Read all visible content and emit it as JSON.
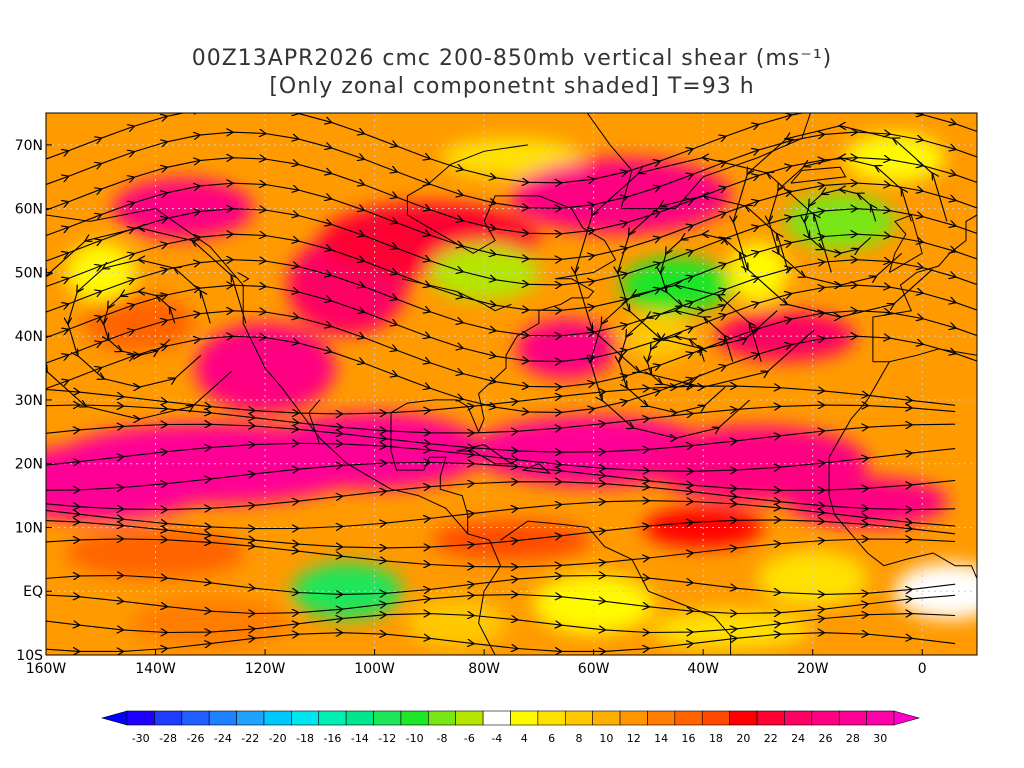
{
  "title": {
    "line1": "00Z13APR2026 cmc 200-850mb vertical shear (ms⁻¹)",
    "line2": "[Only zonal componetnt shaded] T=93 h"
  },
  "map": {
    "lon_range": [
      -160,
      10
    ],
    "lat_range": [
      -10,
      75
    ],
    "lon_ticks": [
      {
        "v": -160,
        "label": "160W"
      },
      {
        "v": -140,
        "label": "140W"
      },
      {
        "v": -120,
        "label": "120W"
      },
      {
        "v": -100,
        "label": "100W"
      },
      {
        "v": -80,
        "label": "80W"
      },
      {
        "v": -60,
        "label": "60W"
      },
      {
        "v": -40,
        "label": "40W"
      },
      {
        "v": -20,
        "label": "20W"
      },
      {
        "v": 0,
        "label": "0"
      }
    ],
    "lat_ticks": [
      {
        "v": 70,
        "label": "70N"
      },
      {
        "v": 60,
        "label": "60N"
      },
      {
        "v": 50,
        "label": "50N"
      },
      {
        "v": 40,
        "label": "40N"
      },
      {
        "v": 30,
        "label": "30N"
      },
      {
        "v": 20,
        "label": "20N"
      },
      {
        "v": 10,
        "label": "10N"
      },
      {
        "v": 0,
        "label": "EQ"
      },
      {
        "v": -10,
        "label": "10S"
      }
    ],
    "grid": true
  },
  "colorbar": {
    "values": [
      -30,
      -28,
      -26,
      -24,
      -22,
      -20,
      -18,
      -16,
      -14,
      -12,
      -10,
      -8,
      -6,
      -4,
      4,
      6,
      8,
      10,
      12,
      14,
      16,
      18,
      20,
      22,
      24,
      26,
      28,
      30
    ],
    "labels": [
      "-30",
      "-28",
      "-26",
      "-24",
      "-22",
      "-20",
      "-18",
      "-16",
      "-14",
      "-12",
      "-10",
      "-8",
      "-6",
      "-4",
      "4",
      "6",
      "8",
      "10",
      "12",
      "14",
      "16",
      "18",
      "20",
      "22",
      "24",
      "26",
      "28",
      "30"
    ],
    "colors": [
      "#1e00ff",
      "#1e3cff",
      "#1f5fff",
      "#1e82ff",
      "#1fa3ff",
      "#00c8ff",
      "#00e6f0",
      "#00f0b4",
      "#00e68c",
      "#1ee65a",
      "#1ee628",
      "#78e614",
      "#b4e600",
      "#ffffff",
      "#fffa00",
      "#ffe100",
      "#ffc800",
      "#ffaf00",
      "#ff9600",
      "#ff7d00",
      "#ff6400",
      "#ff4b00",
      "#ff0000",
      "#ff0032",
      "#ff0064",
      "#ff0082",
      "#ff0096",
      "#ff00aa"
    ]
  },
  "chart_data": {
    "type": "heatmap",
    "title": "00Z13APR2026 cmc 200-850mb vertical shear (ms⁻¹)",
    "subtitle": "[Only zonal componetnt shaded] T=93 h",
    "xlabel": "",
    "ylabel": "",
    "x_range": [
      -160,
      10
    ],
    "y_range": [
      -10,
      75
    ],
    "value_range": [
      -30,
      30
    ],
    "regions": [
      {
        "lon": -150,
        "lat": 17,
        "value": 28
      },
      {
        "lon": -100,
        "lat": 22,
        "value": 28
      },
      {
        "lon": -30,
        "lat": 20,
        "value": 26
      },
      {
        "lon": -90,
        "lat": 55,
        "value": 22
      },
      {
        "lon": -55,
        "lat": 62,
        "value": 26
      },
      {
        "lon": -143,
        "lat": 42,
        "value": 16
      },
      {
        "lon": -105,
        "lat": 0,
        "value": -12
      },
      {
        "lon": -45,
        "lat": 48,
        "value": -10
      },
      {
        "lon": -15,
        "lat": 58,
        "value": -8
      },
      {
        "lon": -80,
        "lat": 50,
        "value": -6
      },
      {
        "lon": -20,
        "lat": 2,
        "value": 6
      },
      {
        "lon": 5,
        "lat": 0,
        "value": -4
      }
    ]
  }
}
